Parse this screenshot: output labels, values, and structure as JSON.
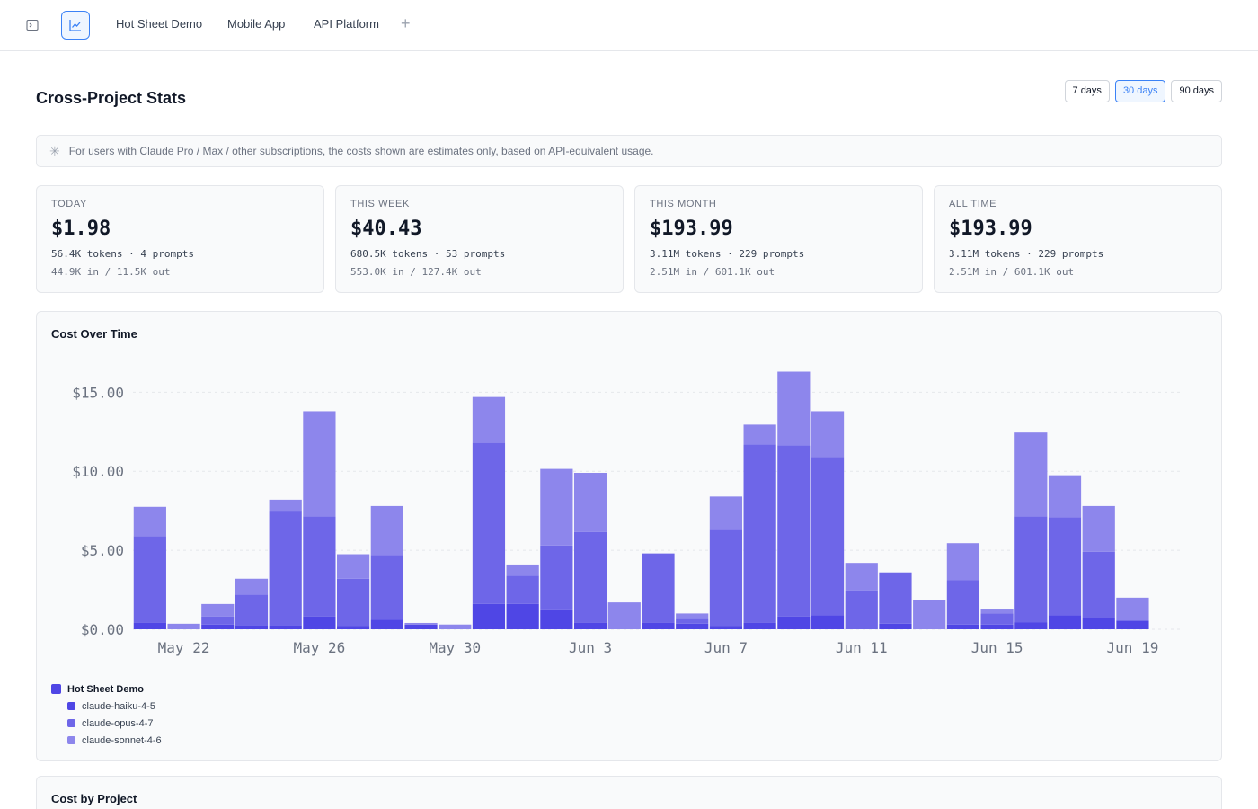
{
  "topbar": {
    "tabs": [
      "Hot Sheet Demo",
      "Mobile App",
      "API Platform"
    ],
    "add_label": "+"
  },
  "header": {
    "title": "Cross-Project Stats",
    "ranges": [
      "7 days",
      "30 days",
      "90 days"
    ],
    "active_range": "30 days"
  },
  "notice": {
    "icon": "asterisk-icon",
    "text": "For users with Claude Pro / Max / other subscriptions, the costs shown are estimates only, based on API-equivalent usage."
  },
  "cards": [
    {
      "label": "TODAY",
      "amount": "$1.98",
      "line1": "56.4K tokens · 4 prompts",
      "line2": "44.9K in / 11.5K out"
    },
    {
      "label": "THIS WEEK",
      "amount": "$40.43",
      "line1": "680.5K tokens · 53 prompts",
      "line2": "553.0K in / 127.4K out"
    },
    {
      "label": "THIS MONTH",
      "amount": "$193.99",
      "line1": "3.11M tokens · 229 prompts",
      "line2": "2.51M in / 601.1K out"
    },
    {
      "label": "ALL TIME",
      "amount": "$193.99",
      "line1": "3.11M tokens · 229 prompts",
      "line2": "2.51M in / 601.1K out"
    }
  ],
  "cost_over_time": {
    "title": "Cost Over Time",
    "legend_project": "Hot Sheet Demo",
    "colors": {
      "project": "#4f46e5",
      "haiku": "#4f46e5",
      "opus": "#6e66e8",
      "sonnet": "#8d86ec"
    }
  },
  "chart_data": {
    "type": "bar",
    "stacked": true,
    "categories": [
      "May 21",
      "May 22",
      "May 23",
      "May 24",
      "May 25",
      "May 26",
      "May 27",
      "May 28",
      "May 29",
      "May 30",
      "May 31",
      "Jun 1",
      "Jun 2",
      "Jun 3",
      "Jun 4",
      "Jun 5",
      "Jun 6",
      "Jun 7",
      "Jun 8",
      "Jun 9",
      "Jun 10",
      "Jun 11",
      "Jun 12",
      "Jun 13",
      "Jun 14",
      "Jun 15",
      "Jun 16",
      "Jun 17",
      "Jun 18",
      "Jun 19",
      "Jun 20"
    ],
    "x_tick_labels": [
      "May 22",
      "May 26",
      "May 30",
      "Jun 3",
      "Jun 7",
      "Jun 11",
      "Jun 15",
      "Jun 19"
    ],
    "y_tick_labels": [
      "$0.00",
      "$5.00",
      "$10.00",
      "$15.00"
    ],
    "ylim": [
      0,
      16.5
    ],
    "grid": true,
    "legend_position": "bottom-left",
    "series": [
      {
        "name": "claude-haiku-4-5",
        "values": [
          0.4,
          0,
          0.3,
          0.25,
          0.25,
          0.8,
          0.2,
          0.6,
          0.3,
          0,
          1.6,
          1.6,
          1.2,
          0.4,
          0,
          0.4,
          0.35,
          0.2,
          0.4,
          0.8,
          0.9,
          0,
          0.35,
          0,
          0.3,
          0.3,
          0.45,
          0.9,
          0.7,
          0.55,
          0
        ]
      },
      {
        "name": "claude-opus-4-7",
        "values": [
          5.5,
          0,
          0.5,
          1.95,
          7.2,
          6.35,
          3.0,
          4.1,
          0,
          0,
          10.2,
          1.8,
          4.1,
          5.75,
          0,
          4.4,
          0.3,
          6.1,
          11.3,
          10.85,
          10.0,
          2.45,
          3.25,
          0,
          2.8,
          0.7,
          6.7,
          6.2,
          4.2,
          0,
          0
        ]
      },
      {
        "name": "claude-sonnet-4-6",
        "values": [
          1.85,
          0.35,
          0.8,
          1.0,
          0.75,
          6.65,
          1.55,
          3.1,
          0.1,
          0.3,
          2.9,
          0.7,
          4.85,
          3.75,
          1.7,
          0,
          0.35,
          2.1,
          1.25,
          4.65,
          2.9,
          1.75,
          0,
          1.85,
          2.35,
          0.25,
          5.3,
          2.65,
          2.9,
          1.45,
          0
        ]
      }
    ]
  },
  "cost_by_project": {
    "title": "Cost by Project"
  }
}
